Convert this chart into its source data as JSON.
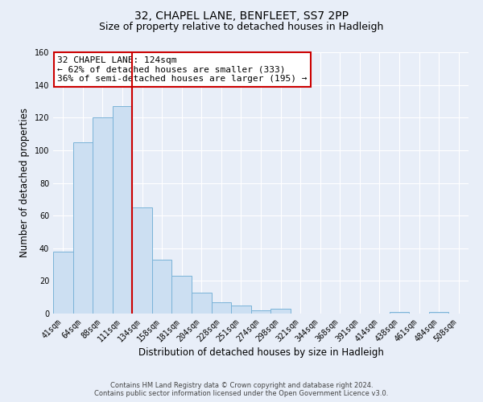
{
  "title": "32, CHAPEL LANE, BENFLEET, SS7 2PP",
  "subtitle": "Size of property relative to detached houses in Hadleigh",
  "xlabel": "Distribution of detached houses by size in Hadleigh",
  "ylabel": "Number of detached properties",
  "bar_labels": [
    "41sqm",
    "64sqm",
    "88sqm",
    "111sqm",
    "134sqm",
    "158sqm",
    "181sqm",
    "204sqm",
    "228sqm",
    "251sqm",
    "274sqm",
    "298sqm",
    "321sqm",
    "344sqm",
    "368sqm",
    "391sqm",
    "414sqm",
    "438sqm",
    "461sqm",
    "484sqm",
    "508sqm"
  ],
  "bar_values": [
    38,
    105,
    120,
    127,
    65,
    33,
    23,
    13,
    7,
    5,
    2,
    3,
    0,
    0,
    0,
    0,
    0,
    1,
    0,
    1,
    0
  ],
  "bar_color": "#ccdff2",
  "bar_edge_color": "#7ab3d8",
  "ylim": [
    0,
    160
  ],
  "yticks": [
    0,
    20,
    40,
    60,
    80,
    100,
    120,
    140,
    160
  ],
  "red_line_color": "#cc0000",
  "annotation_title": "32 CHAPEL LANE: 124sqm",
  "annotation_line1": "← 62% of detached houses are smaller (333)",
  "annotation_line2": "36% of semi-detached houses are larger (195) →",
  "annotation_box_color": "#ffffff",
  "annotation_box_edge": "#cc0000",
  "footer_line1": "Contains HM Land Registry data © Crown copyright and database right 2024.",
  "footer_line2": "Contains public sector information licensed under the Open Government Licence v3.0.",
  "bg_color": "#e8eef8",
  "plot_bg_color": "#e8eef8",
  "title_fontsize": 10,
  "subtitle_fontsize": 9,
  "axis_label_fontsize": 8.5,
  "tick_fontsize": 7,
  "annotation_fontsize": 8,
  "footer_fontsize": 6
}
